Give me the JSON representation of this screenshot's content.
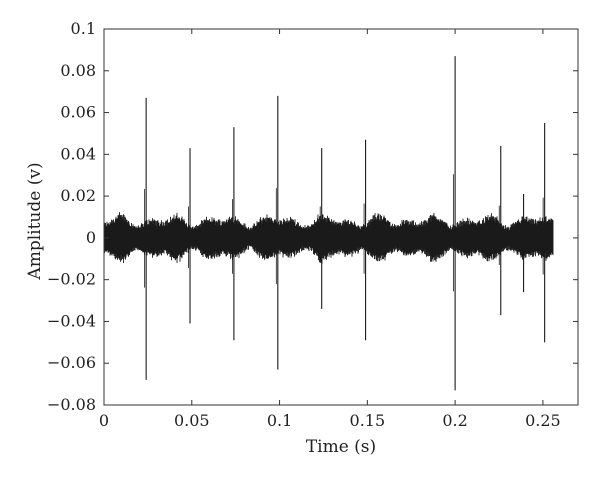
{
  "chart_data": {
    "type": "line",
    "xlabel": "Time (s)",
    "ylabel": "Amplitude (v)",
    "xlim": [
      0,
      0.27
    ],
    "ylim": [
      -0.08,
      0.1
    ],
    "x_ticks": [
      0,
      0.05,
      0.1,
      0.15,
      0.2,
      0.25
    ],
    "x_tick_labels": [
      "0",
      "0.05",
      "0.1",
      "0.15",
      "0.2",
      "0.25"
    ],
    "y_ticks": [
      -0.08,
      -0.06,
      -0.04,
      -0.02,
      0,
      0.02,
      0.04,
      0.06,
      0.08,
      0.1
    ],
    "y_tick_labels": [
      "−0.08",
      "−0.06",
      "−0.04",
      "−0.02",
      "0",
      "0.02",
      "0.04",
      "0.06",
      "0.08",
      "0.1"
    ],
    "grid": false,
    "line_color": "#1a1a1a",
    "signal_x_range": [
      0,
      0.256
    ],
    "background_noise_amplitude": 0.012,
    "impulses": [
      {
        "t": 0.024,
        "max": 0.067,
        "min": -0.068
      },
      {
        "t": 0.049,
        "max": 0.043,
        "min": -0.041
      },
      {
        "t": 0.074,
        "max": 0.053,
        "min": -0.049
      },
      {
        "t": 0.099,
        "max": 0.068,
        "min": -0.063
      },
      {
        "t": 0.124,
        "max": 0.043,
        "min": -0.034
      },
      {
        "t": 0.149,
        "max": 0.047,
        "min": -0.049
      },
      {
        "t": 0.2,
        "max": 0.087,
        "min": -0.073
      },
      {
        "t": 0.226,
        "max": 0.044,
        "min": -0.037
      },
      {
        "t": 0.239,
        "max": 0.021,
        "min": -0.026
      },
      {
        "t": 0.251,
        "max": 0.055,
        "min": -0.05
      }
    ]
  }
}
